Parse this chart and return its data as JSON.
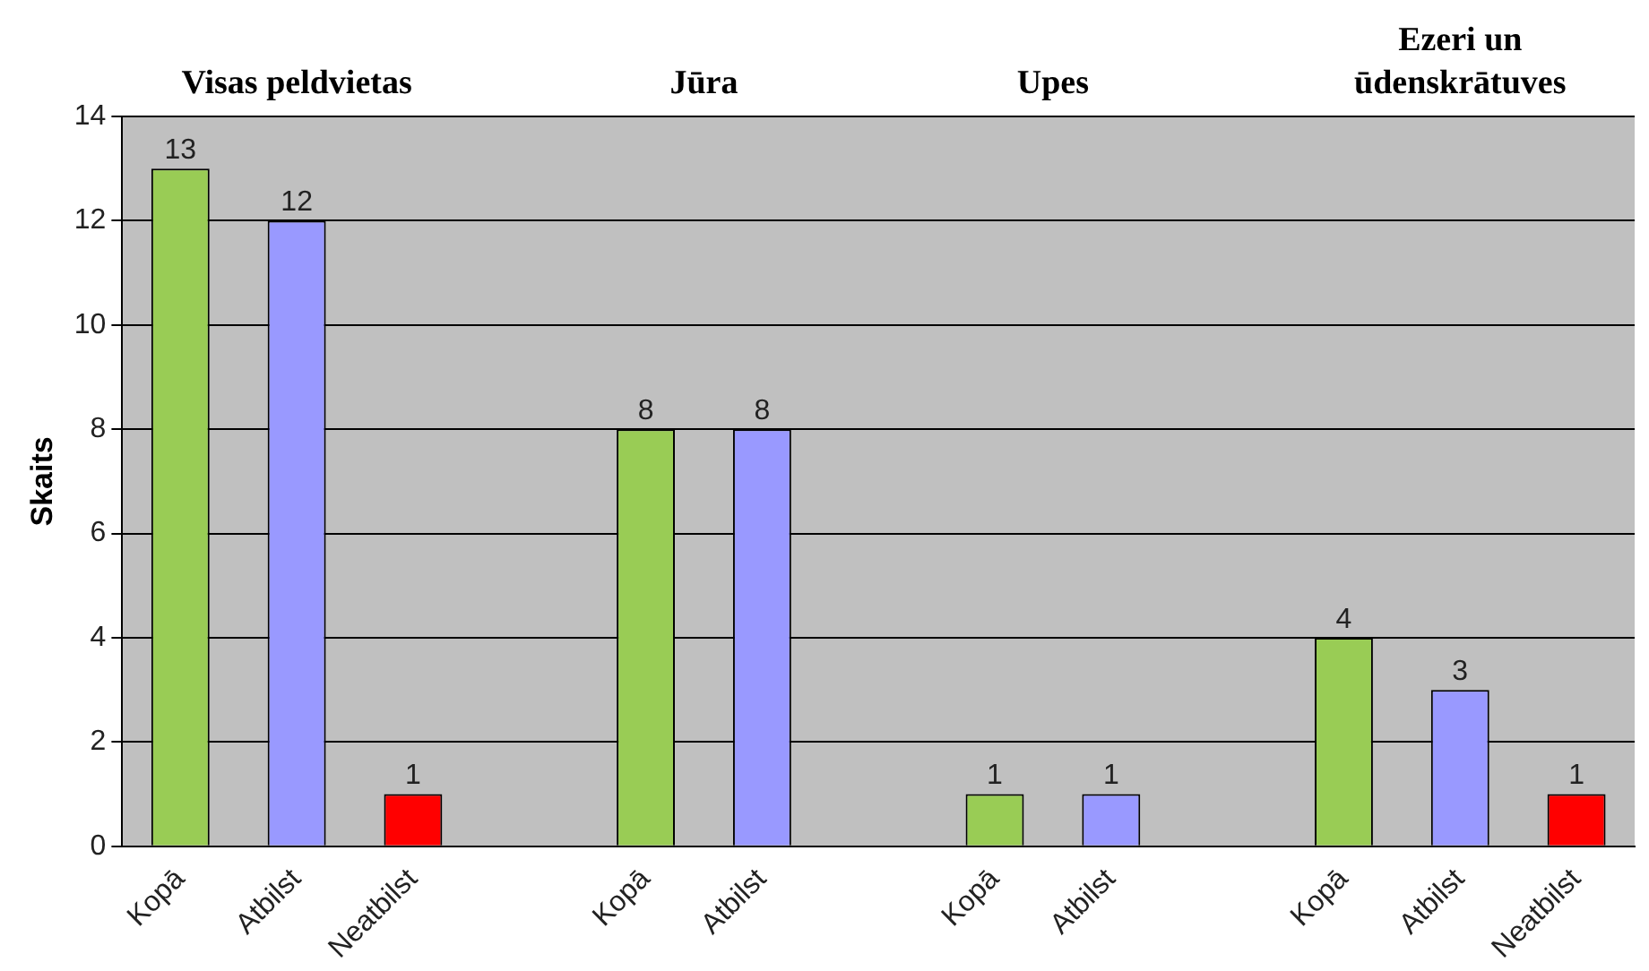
{
  "chart_data": {
    "type": "bar",
    "ylabel": "Skaits",
    "categories": [
      "Kopā",
      "Atbilst",
      "Neatbilst",
      null,
      "Kopā",
      "Atbilst",
      null,
      "Kopā",
      "Atbilst",
      null,
      "Kopā",
      "Atbilst",
      "Neatbilst"
    ],
    "values": [
      13,
      12,
      1,
      null,
      8,
      8,
      null,
      1,
      1,
      null,
      4,
      3,
      1
    ],
    "colors": [
      "#99cc55",
      "#9999ff",
      "#ff0000",
      null,
      "#99cc55",
      "#9999ff",
      null,
      "#99cc55",
      "#9999ff",
      null,
      "#99cc55",
      "#9999ff",
      "#ff0000"
    ],
    "ylim": [
      0,
      14
    ],
    "yticks": [
      0,
      2,
      4,
      6,
      8,
      10,
      12,
      14
    ],
    "grid": "y",
    "legend": false,
    "data_labels": true,
    "annotations": [
      "Visas peldvietas",
      "Jūra",
      "Upes",
      "Ezeri un ūdenskrātuves"
    ]
  }
}
